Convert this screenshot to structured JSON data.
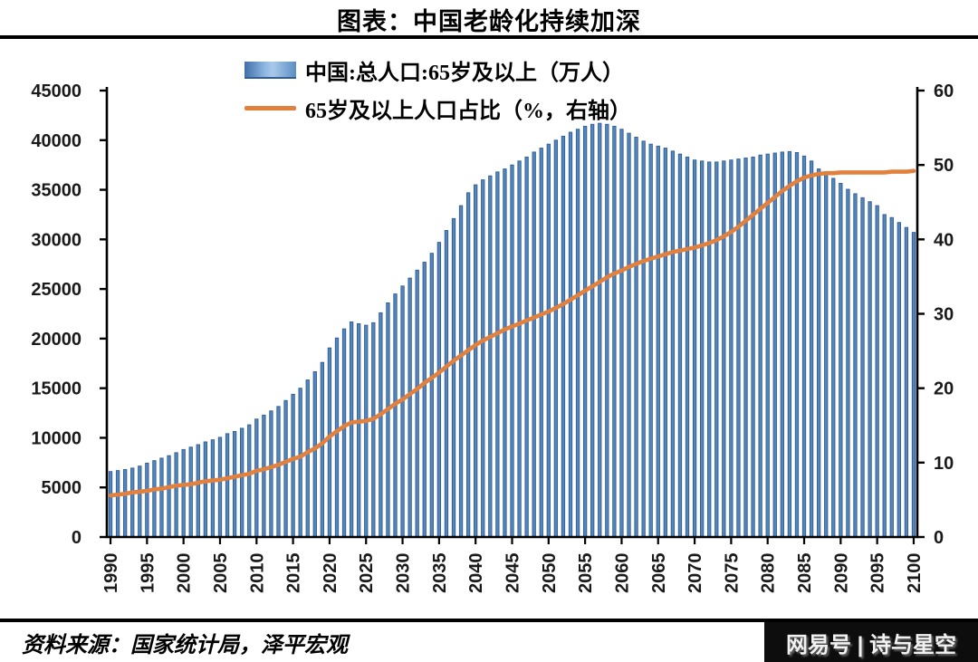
{
  "title": "图表：中国老龄化持续加深",
  "legend": {
    "bars_label": "中国:总人口:65岁及以上（万人）",
    "line_label": "65岁及以上人口占比（%，右轴）"
  },
  "source_note": "资料来源：国家统计局，泽平宏观",
  "watermark": "网易号 | 诗与星空",
  "colors": {
    "bar_fill": "#5585bd",
    "bar_edge": "#2f5d94",
    "line": "#e2803d",
    "axis": "#000000"
  },
  "chart_data": {
    "type": "bar+line combo",
    "title": "图表：中国老龄化持续加深",
    "years": {
      "start": 1990,
      "end": 2100,
      "step": 1
    },
    "x_tick_labels": [
      "1990",
      "1995",
      "2000",
      "2005",
      "2010",
      "2015",
      "2020",
      "2025",
      "2030",
      "2035",
      "2040",
      "2045",
      "2050",
      "2055",
      "2060",
      "2065",
      "2070",
      "2075",
      "2080",
      "2085",
      "2090",
      "2095",
      "2100"
    ],
    "left_axis": {
      "min": 0,
      "max": 45000,
      "tick_step": 5000
    },
    "right_axis": {
      "min": 0,
      "max": 60,
      "tick_step": 10
    },
    "grid": false,
    "legend_position": "top",
    "series": [
      {
        "name": "中国:总人口:65岁及以上（万人）",
        "type": "bar",
        "axis": "left",
        "values": [
          6600,
          6700,
          6800,
          6950,
          7150,
          7450,
          7700,
          7950,
          8200,
          8500,
          8820,
          9060,
          9310,
          9590,
          9800,
          10050,
          10420,
          10640,
          10960,
          11310,
          11890,
          12290,
          12710,
          13160,
          13760,
          14390,
          15000,
          15830,
          16660,
          17600,
          19060,
          20060,
          20980,
          21680,
          21500,
          21350,
          21600,
          22600,
          23600,
          24500,
          25300,
          26100,
          26900,
          27700,
          28600,
          29700,
          30900,
          32100,
          33400,
          34700,
          35500,
          36000,
          36400,
          36800,
          37100,
          37500,
          37900,
          38300,
          38800,
          39200,
          39600,
          40000,
          40400,
          40800,
          41100,
          41400,
          41600,
          41700,
          41600,
          41400,
          41100,
          40700,
          40300,
          39900,
          39600,
          39400,
          39200,
          38900,
          38600,
          38300,
          38000,
          37900,
          37800,
          37800,
          37900,
          38000,
          38100,
          38200,
          38300,
          38500,
          38600,
          38700,
          38800,
          38850,
          38750,
          38400,
          37900,
          37100,
          36650,
          36150,
          35650,
          35050,
          34600,
          34200,
          33800,
          33400,
          32500,
          32200,
          31700,
          31200,
          30700
        ]
      },
      {
        "name": "65岁及以上人口占比（%，右轴）",
        "type": "line",
        "axis": "right",
        "values": [
          5.6,
          5.7,
          5.8,
          6.0,
          6.1,
          6.2,
          6.4,
          6.5,
          6.7,
          6.9,
          7.0,
          7.1,
          7.3,
          7.5,
          7.6,
          7.7,
          7.9,
          8.1,
          8.3,
          8.5,
          8.9,
          9.1,
          9.4,
          9.7,
          10.1,
          10.5,
          10.8,
          11.4,
          11.9,
          12.6,
          13.5,
          14.2,
          14.9,
          15.4,
          15.5,
          15.6,
          15.9,
          16.5,
          17.2,
          17.9,
          18.5,
          19.2,
          19.9,
          20.7,
          21.4,
          22.1,
          22.9,
          23.7,
          24.4,
          25.1,
          25.8,
          26.4,
          26.9,
          27.4,
          27.9,
          28.3,
          28.7,
          29.1,
          29.5,
          29.9,
          30.3,
          30.8,
          31.3,
          31.9,
          32.5,
          33.1,
          33.7,
          34.3,
          34.9,
          35.4,
          35.8,
          36.3,
          36.7,
          37.1,
          37.4,
          37.7,
          38.0,
          38.3,
          38.5,
          38.7,
          38.9,
          39.2,
          39.5,
          39.9,
          40.4,
          41.0,
          41.7,
          42.5,
          43.3,
          44.1,
          44.9,
          45.7,
          46.5,
          47.2,
          47.8,
          48.3,
          48.6,
          48.8,
          48.9,
          48.9,
          49.0,
          49.0,
          49.0,
          49.0,
          49.0,
          49.0,
          49.0,
          49.1,
          49.1,
          49.1,
          49.2
        ]
      }
    ]
  }
}
